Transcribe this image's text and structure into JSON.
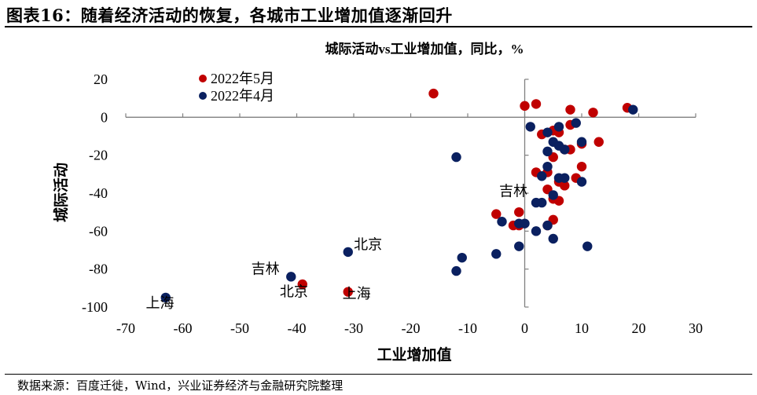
{
  "figure_title": "图表16：随着经济活动的恢复，各城市工业增加值逐渐回升",
  "source_text": "数据来源：百度迁徙，Wind，兴业证券经济与金融研究院整理",
  "colors": {
    "may": "#c00000",
    "april": "#0a2060",
    "axis": "#808080"
  },
  "chart_data": {
    "type": "scatter",
    "title": "城际活动vs工业增加值，同比，%",
    "xlabel": "工业增加值",
    "ylabel": "城际活动",
    "xlim": [
      -70,
      30
    ],
    "ylim": [
      -100,
      20
    ],
    "xticks": [
      -70,
      -60,
      -50,
      -40,
      -30,
      -20,
      -10,
      0,
      10,
      20,
      30
    ],
    "yticks": [
      20,
      0,
      -20,
      -40,
      -60,
      -80,
      -100
    ],
    "legend": [
      "2022年5月",
      "2022年4月"
    ],
    "series": [
      {
        "name": "2022年5月",
        "points": [
          [
            -16,
            12.5
          ],
          [
            0,
            6
          ],
          [
            2,
            7
          ],
          [
            8,
            4
          ],
          [
            12,
            2.5
          ],
          [
            18,
            5
          ],
          [
            3,
            -9
          ],
          [
            5,
            -7
          ],
          [
            6,
            -8
          ],
          [
            8,
            -4
          ],
          [
            10,
            -14
          ],
          [
            13,
            -13
          ],
          [
            7,
            -17
          ],
          [
            8,
            -17
          ],
          [
            5,
            -21
          ],
          [
            2,
            -29
          ],
          [
            4,
            -29
          ],
          [
            6,
            -34
          ],
          [
            10,
            -26
          ],
          [
            9,
            -32
          ],
          [
            7,
            -36
          ],
          [
            4,
            -38
          ],
          [
            5,
            -43
          ],
          [
            6,
            -44
          ],
          [
            -5,
            -51
          ],
          [
            -1,
            -50
          ],
          [
            -2,
            -57
          ],
          [
            -1,
            -57
          ],
          [
            4,
            -57
          ],
          [
            5,
            -54
          ],
          [
            -39,
            -88
          ],
          [
            -31,
            -92
          ]
        ]
      },
      {
        "name": "2022年4月",
        "points": [
          [
            19,
            4
          ],
          [
            1,
            -5
          ],
          [
            4,
            -8
          ],
          [
            6,
            -5
          ],
          [
            9,
            -3
          ],
          [
            5,
            -13
          ],
          [
            6,
            -15
          ],
          [
            10,
            -13
          ],
          [
            4,
            -18
          ],
          [
            7,
            -17
          ],
          [
            4,
            -26
          ],
          [
            3,
            -31
          ],
          [
            6,
            -32
          ],
          [
            7,
            -32
          ],
          [
            10,
            -34
          ],
          [
            5,
            -41
          ],
          [
            3,
            -45
          ],
          [
            2,
            -45
          ],
          [
            -12,
            -21
          ],
          [
            -4,
            -55
          ],
          [
            -1,
            -56
          ],
          [
            0,
            -56
          ],
          [
            2,
            -60
          ],
          [
            4,
            -57
          ],
          [
            5,
            -64
          ],
          [
            -1,
            -68
          ],
          [
            -5,
            -72
          ],
          [
            -11,
            -74
          ],
          [
            -12,
            -81
          ],
          [
            11,
            -68
          ],
          [
            -31,
            -71
          ],
          [
            -41,
            -84
          ],
          [
            -63,
            -95
          ]
        ]
      }
    ],
    "annotations": [
      {
        "text": "吉林",
        "x": -2,
        "y": -39
      },
      {
        "text": "北京",
        "x": -27.5,
        "y": -67
      },
      {
        "text": "吉林",
        "x": -45.5,
        "y": -80
      },
      {
        "text": "北京",
        "x": -40.5,
        "y": -92
      },
      {
        "text": "上海",
        "x": -64,
        "y": -98
      },
      {
        "text": "上海",
        "x": -29.5,
        "y": -93
      }
    ]
  }
}
